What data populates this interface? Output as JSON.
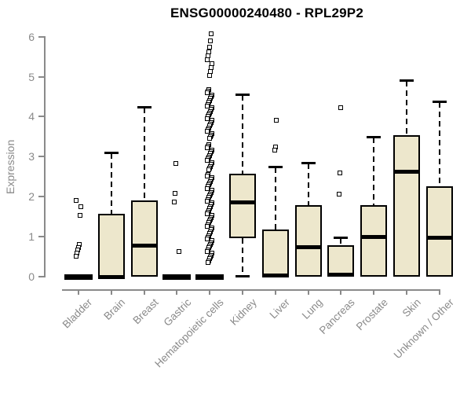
{
  "title": "ENSG00000240480 - RPL29P2",
  "colors": {
    "box_fill": "#EDE7CC",
    "box_border": "#000000",
    "axis_gray": "#8A8A8A",
    "title_color": "#000000"
  },
  "chart_data": {
    "type": "boxplot",
    "title": "ENSG00000240480 - RPL29P2",
    "xlabel": "",
    "ylabel": "Expression",
    "ylim": [
      0,
      6
    ],
    "yticks": [
      0,
      1,
      2,
      3,
      4,
      5,
      6
    ],
    "grid": false,
    "categories": [
      "Bladder",
      "Brain",
      "Breast",
      "Gastric",
      "Hematopoietic cells",
      "Kidney",
      "Liver",
      "Lung",
      "Pancreas",
      "Prostate",
      "Skin",
      "Unknown / Other"
    ],
    "boxes": [
      {
        "name": "Bladder",
        "q1": 0,
        "median": 0,
        "q3": 0,
        "whisker_low": 0,
        "whisker_high": 0,
        "outliers": [
          1.91,
          1.74,
          1.53,
          0.8,
          0.73,
          0.66,
          0.58,
          0.51
        ]
      },
      {
        "name": "Brain",
        "q1": 0,
        "median": 0,
        "q3": 1.58,
        "whisker_low": 0,
        "whisker_high": 3.09,
        "outliers": []
      },
      {
        "name": "Breast",
        "q1": 0,
        "median": 0.77,
        "q3": 1.91,
        "whisker_low": 0,
        "whisker_high": 4.22,
        "outliers": []
      },
      {
        "name": "Gastric",
        "q1": 0,
        "median": 0,
        "q3": 0,
        "whisker_low": 0,
        "whisker_high": 0,
        "outliers": [
          2.82,
          2.09,
          1.86,
          0.63
        ]
      },
      {
        "name": "Hematopoietic cells",
        "q1": 0,
        "median": 0,
        "q3": 0,
        "whisker_low": 0,
        "whisker_high": 0,
        "outliers": [
          6.08,
          5.9,
          5.73,
          5.62,
          5.52,
          5.43,
          5.33,
          5.23,
          5.13,
          5.02,
          4.68,
          4.63,
          4.59,
          4.54,
          4.5,
          4.45,
          4.41,
          4.36,
          4.31,
          4.27,
          4.22,
          4.18,
          4.13,
          4.09,
          4.04,
          4.0,
          3.95,
          3.9,
          3.86,
          3.81,
          3.77,
          3.72,
          3.68,
          3.63,
          3.58,
          3.54,
          3.49,
          3.45,
          3.31,
          3.26,
          3.22,
          3.17,
          3.12,
          3.08,
          3.03,
          2.99,
          2.94,
          2.9,
          2.85,
          2.8,
          2.76,
          2.71,
          2.67,
          2.56,
          2.52,
          2.47,
          2.43,
          2.38,
          2.34,
          2.29,
          2.25,
          2.2,
          2.16,
          2.11,
          2.07,
          2.02,
          1.98,
          1.93,
          1.89,
          1.84,
          1.8,
          1.75,
          1.71,
          1.66,
          1.62,
          1.57,
          1.53,
          1.48,
          1.44,
          1.39,
          1.35,
          1.3,
          1.26,
          1.21,
          1.17,
          1.12,
          1.08,
          1.03,
          0.99,
          0.94,
          0.9,
          0.85,
          0.81,
          0.76,
          0.72,
          0.67,
          0.63,
          0.58,
          0.54,
          0.49,
          0.45,
          0.4,
          0.36
        ]
      },
      {
        "name": "Kidney",
        "q1": 0.96,
        "median": 1.85,
        "q3": 2.57,
        "whisker_low": 0.01,
        "whisker_high": 4.53,
        "outliers": []
      },
      {
        "name": "Liver",
        "q1": 0,
        "median": 0.03,
        "q3": 1.18,
        "whisker_low": 0,
        "whisker_high": 2.73,
        "outliers": [
          3.9,
          3.24,
          3.17
        ]
      },
      {
        "name": "Lung",
        "q1": 0,
        "median": 0.74,
        "q3": 1.78,
        "whisker_low": 0,
        "whisker_high": 2.83,
        "outliers": []
      },
      {
        "name": "Pancreas",
        "q1": 0,
        "median": 0.04,
        "q3": 0.78,
        "whisker_low": 0,
        "whisker_high": 0.96,
        "outliers": [
          4.22,
          2.6,
          2.07
        ]
      },
      {
        "name": "Prostate",
        "q1": 0,
        "median": 1.0,
        "q3": 1.79,
        "whisker_low": 0,
        "whisker_high": 3.47,
        "outliers": []
      },
      {
        "name": "Skin",
        "q1": 0,
        "median": 2.63,
        "q3": 3.53,
        "whisker_low": 0,
        "whisker_high": 4.9,
        "outliers": []
      },
      {
        "name": "Unknown / Other",
        "q1": 0,
        "median": 0.98,
        "q3": 2.25,
        "whisker_low": 0,
        "whisker_high": 4.37,
        "outliers": []
      }
    ]
  }
}
